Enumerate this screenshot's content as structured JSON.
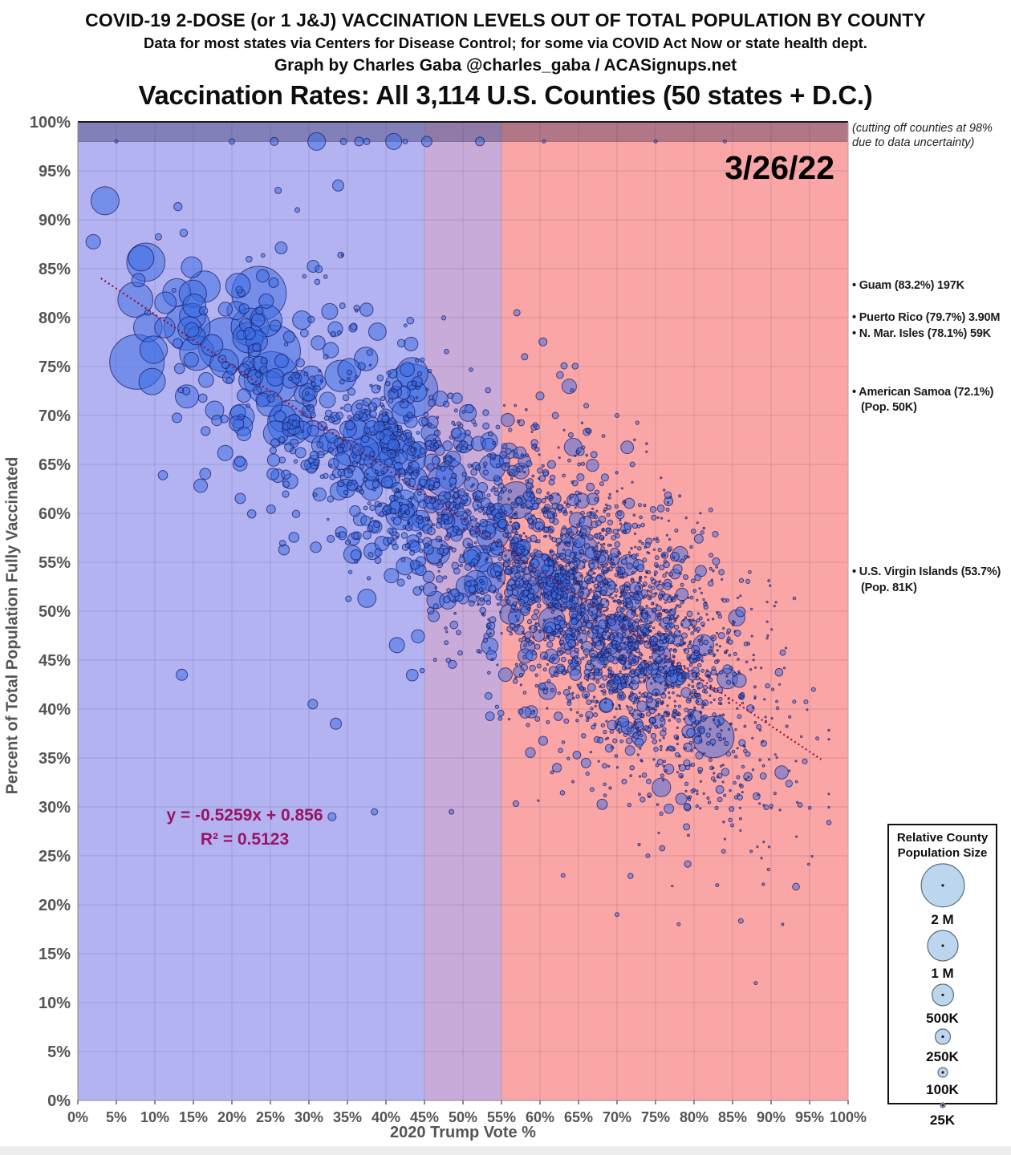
{
  "header": {
    "title": "COVID-19 2-DOSE (or 1 J&J) VACCINATION LEVELS OUT OF TOTAL POPULATION BY COUNTY",
    "subtitle": "Data for most states via Centers for Disease Control; for some via COVID Act Now or state health dept.",
    "byline": "Graph by Charles Gaba @charles_gaba / ACASignups.net",
    "chart_title": "Vaccination Rates: All 3,114 U.S. Counties (50 states + D.C.)"
  },
  "chart_data": {
    "type": "scatter",
    "date_label": "3/26/22",
    "xlabel": "2020 Trump Vote %",
    "ylabel": "Percent of Total Population Fully Vaccinated",
    "xlim": [
      0,
      100
    ],
    "ylim": [
      0,
      100
    ],
    "grid": true,
    "x_ticks": [
      "0%",
      "5%",
      "10%",
      "15%",
      "20%",
      "25%",
      "30%",
      "35%",
      "40%",
      "45%",
      "50%",
      "55%",
      "60%",
      "65%",
      "70%",
      "75%",
      "80%",
      "85%",
      "90%",
      "95%",
      "100%"
    ],
    "y_ticks": [
      "0%",
      "5%",
      "10%",
      "15%",
      "20%",
      "25%",
      "30%",
      "35%",
      "40%",
      "45%",
      "50%",
      "55%",
      "60%",
      "65%",
      "70%",
      "75%",
      "80%",
      "85%",
      "90%",
      "95%",
      "100%"
    ],
    "bands": {
      "blue": [
        0,
        45
      ],
      "overlap": [
        45,
        55
      ],
      "red": [
        55,
        100
      ],
      "cutoff_band": [
        98,
        100
      ]
    },
    "cutoff_note_line1": "(cutting off counties at 98%",
    "cutoff_note_line2": "due to data uncertainty)",
    "regression": {
      "slope": -0.5259,
      "intercept": 0.856,
      "r2": 0.5123,
      "label_line1": "y = -0.5259x + 0.856",
      "label_line2": "R² = 0.5123",
      "x_start": 3,
      "x_end": 96.5
    },
    "territory_annotations": [
      {
        "y_pct": 83.2,
        "lines": [
          {
            "t": "• Guam (83.2%) 197K",
            "indent": false
          }
        ]
      },
      {
        "y_pct": 79.9,
        "lines": [
          {
            "t": "• Puerto Rico (79.7%) 3.90M",
            "indent": false
          },
          {
            "t": "• N. Mar. Isles (78.1%) 59K",
            "indent": false
          }
        ]
      },
      {
        "y_pct": 72.3,
        "lines": [
          {
            "t": "• American Samoa (72.1%)",
            "indent": false
          },
          {
            "t": "(Pop. 50K)",
            "indent": true
          }
        ]
      },
      {
        "y_pct": 53.9,
        "lines": [
          {
            "t": "• U.S. Virgin Islands (53.7%)",
            "indent": false
          },
          {
            "t": "(Pop. 81K)",
            "indent": true
          }
        ]
      }
    ],
    "legend": {
      "title_line1": "Relative County",
      "title_line2": "Population Size",
      "position": "bottom-right",
      "items": [
        {
          "label": "2 M",
          "pop": 2000000
        },
        {
          "label": "1 M",
          "pop": 1000000
        },
        {
          "label": "500K",
          "pop": 500000
        },
        {
          "label": "250K",
          "pop": 250000
        },
        {
          "label": "100K",
          "pop": 100000
        },
        {
          "label": "25K",
          "pop": 25000
        }
      ]
    },
    "county_count": 3114,
    "scatter_generator": {
      "seed": 20220326,
      "count": 3050,
      "x_mixture": [
        {
          "weight": 0.62,
          "mean": 71.5,
          "sd": 9.5
        },
        {
          "weight": 0.3,
          "mean": 52.0,
          "sd": 12.0
        },
        {
          "weight": 0.08,
          "mean": 30.0,
          "sd": 11.0
        }
      ],
      "x_clamp": [
        2,
        97.5
      ],
      "pop_log_mu_at50": 10.35,
      "pop_log_mu_slope": -0.05,
      "pop_log_sd": 1.5,
      "pop_clamp": [
        600,
        10000000
      ],
      "radius_per_sqrt_pop": 0.019,
      "max_radius": 34,
      "y_slope": -0.5259,
      "y_intercept": 85.6,
      "y_noise_sd_small": 7.2,
      "y_noise_sd_large": 4.5,
      "y_clamp": [
        10.5,
        98
      ]
    },
    "outlier_points": [
      [
        5,
        98,
        2
      ],
      [
        20,
        98,
        3.5
      ],
      [
        25.5,
        98,
        5
      ],
      [
        31,
        98,
        11
      ],
      [
        34.5,
        98,
        4
      ],
      [
        36.5,
        98,
        5.5
      ],
      [
        37.5,
        98,
        4
      ],
      [
        41,
        98,
        10
      ],
      [
        42.5,
        98,
        3
      ],
      [
        45.3,
        98,
        6.5
      ],
      [
        52.2,
        98,
        5.5
      ],
      [
        60.5,
        98,
        2
      ],
      [
        75,
        98,
        2
      ],
      [
        84,
        98,
        2
      ],
      [
        26,
        93,
        4
      ],
      [
        28.5,
        91,
        3
      ],
      [
        33.8,
        93.5,
        7
      ],
      [
        13.5,
        43.5,
        7
      ],
      [
        30.5,
        40.5,
        6
      ],
      [
        33.5,
        38.5,
        7
      ],
      [
        33,
        29,
        5
      ],
      [
        38.5,
        29.5,
        4
      ],
      [
        48.5,
        29.5,
        3
      ],
      [
        58,
        76,
        4
      ],
      [
        60,
        72,
        5
      ],
      [
        62,
        70,
        4
      ],
      [
        64,
        68,
        3
      ],
      [
        66,
        71,
        3
      ],
      [
        57,
        80.5,
        4
      ],
      [
        61.5,
        65,
        5
      ],
      [
        67,
        66,
        4
      ],
      [
        70,
        70,
        2.5
      ],
      [
        72,
        65,
        3
      ],
      [
        63,
        23,
        2.5
      ],
      [
        70,
        19,
        2.5
      ],
      [
        78,
        18,
        2
      ],
      [
        83,
        22,
        2
      ],
      [
        88,
        12,
        2
      ],
      [
        91.5,
        18,
        1.5
      ],
      [
        74,
        25,
        2.5
      ],
      [
        96,
        37,
        2
      ],
      [
        95.5,
        42,
        2.5
      ]
    ]
  },
  "colors": {
    "band_blue": "#b3b3f2",
    "band_overlap": "#c9abd9",
    "band_red": "#fba6a6",
    "cutoff_overlay": "rgba(30,25,70,0.33)",
    "bubble_fill": "rgba(55,105,225,0.5)",
    "bubble_stroke": "rgba(25,25,95,0.72)",
    "trend": "#991033",
    "grid": "rgba(70,70,120,0.20)",
    "axis_text": "#555555",
    "regression_text": "#991463",
    "legend_circle_fill": "#bcd6ee",
    "legend_circle_stroke": "#5d6b7a"
  }
}
